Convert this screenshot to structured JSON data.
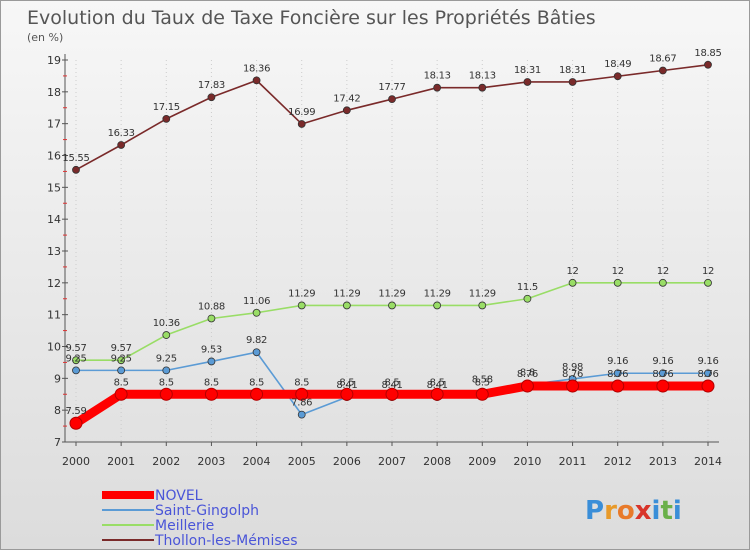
{
  "chart_data": {
    "type": "line",
    "title": "Evolution du Taux de Taxe Foncière sur les Propriétés Bâties",
    "subtitle": "(en %)",
    "xlabel": "",
    "ylabel": "",
    "categories": [
      "2000",
      "2001",
      "2002",
      "2003",
      "2004",
      "2005",
      "2006",
      "2007",
      "2008",
      "2009",
      "2010",
      "2011",
      "2012",
      "2013",
      "2014"
    ],
    "ylim": [
      7,
      19
    ],
    "yticks": [
      "7",
      "8",
      "9",
      "10",
      "11",
      "12",
      "13",
      "14",
      "15",
      "16",
      "17",
      "18",
      "19"
    ],
    "legend_position": "bottom-left",
    "series": [
      {
        "name": "NOVEL",
        "color": "#ff0000",
        "values": [
          7.59,
          8.5,
          8.5,
          8.5,
          8.5,
          8.5,
          8.5,
          8.5,
          8.5,
          8.5,
          8.76,
          8.76,
          8.76,
          8.76,
          8.76
        ],
        "labels": [
          "7.59",
          "8.5",
          "8.5",
          "8.5",
          "8.5",
          "8.5",
          "8.5",
          "8.5",
          "8.5",
          "8.5",
          "8.76",
          "8.76",
          "8.76",
          "8.76",
          "8.76"
        ]
      },
      {
        "name": "Saint-Gingolph",
        "color": "#5b9bd5",
        "values": [
          9.25,
          9.25,
          9.25,
          9.53,
          9.82,
          7.86,
          8.41,
          8.41,
          8.41,
          8.58,
          8.8,
          8.98,
          9.16,
          9.16,
          9.16
        ],
        "labels": [
          "9.25",
          "9.25",
          "9.25",
          "9.53",
          "9.82",
          "7.86",
          "8.41",
          "8.41",
          "8.41",
          "8.58",
          "8.8",
          "8.98",
          "9.16",
          "9.16",
          "9.16"
        ]
      },
      {
        "name": "Meillerie",
        "color": "#99dd66",
        "values": [
          9.57,
          9.57,
          10.36,
          10.88,
          11.06,
          11.29,
          11.29,
          11.29,
          11.29,
          11.29,
          11.5,
          12,
          12,
          12,
          12
        ],
        "labels": [
          "9.57",
          "9.57",
          "10.36",
          "10.88",
          "11.06",
          "11.29",
          "11.29",
          "11.29",
          "11.29",
          "11.29",
          "11.5",
          "12",
          "12",
          "12",
          "12"
        ]
      },
      {
        "name": "Thollon-les-Mémises",
        "color": "#7a2a2a",
        "values": [
          15.55,
          16.33,
          17.15,
          17.83,
          18.36,
          16.99,
          17.42,
          17.77,
          18.13,
          18.13,
          18.31,
          18.31,
          18.49,
          18.67,
          18.85
        ],
        "labels": [
          "15.55",
          "16.33",
          "17.15",
          "17.83",
          "18.36",
          "16.99",
          "17.42",
          "17.77",
          "18.13",
          "18.13",
          "18.31",
          "18.31",
          "18.49",
          "18.67",
          "18.85"
        ]
      }
    ]
  },
  "logo": {
    "text": "Proxiti",
    "letters": [
      "P",
      "r",
      "o",
      "x",
      "i",
      "t",
      "i"
    ],
    "colors": [
      "#3a8ed8",
      "#e89a2a",
      "#e87a2a",
      "#d8342a",
      "#3a8ed8",
      "#6ab04a",
      "#3a8ed8"
    ]
  }
}
